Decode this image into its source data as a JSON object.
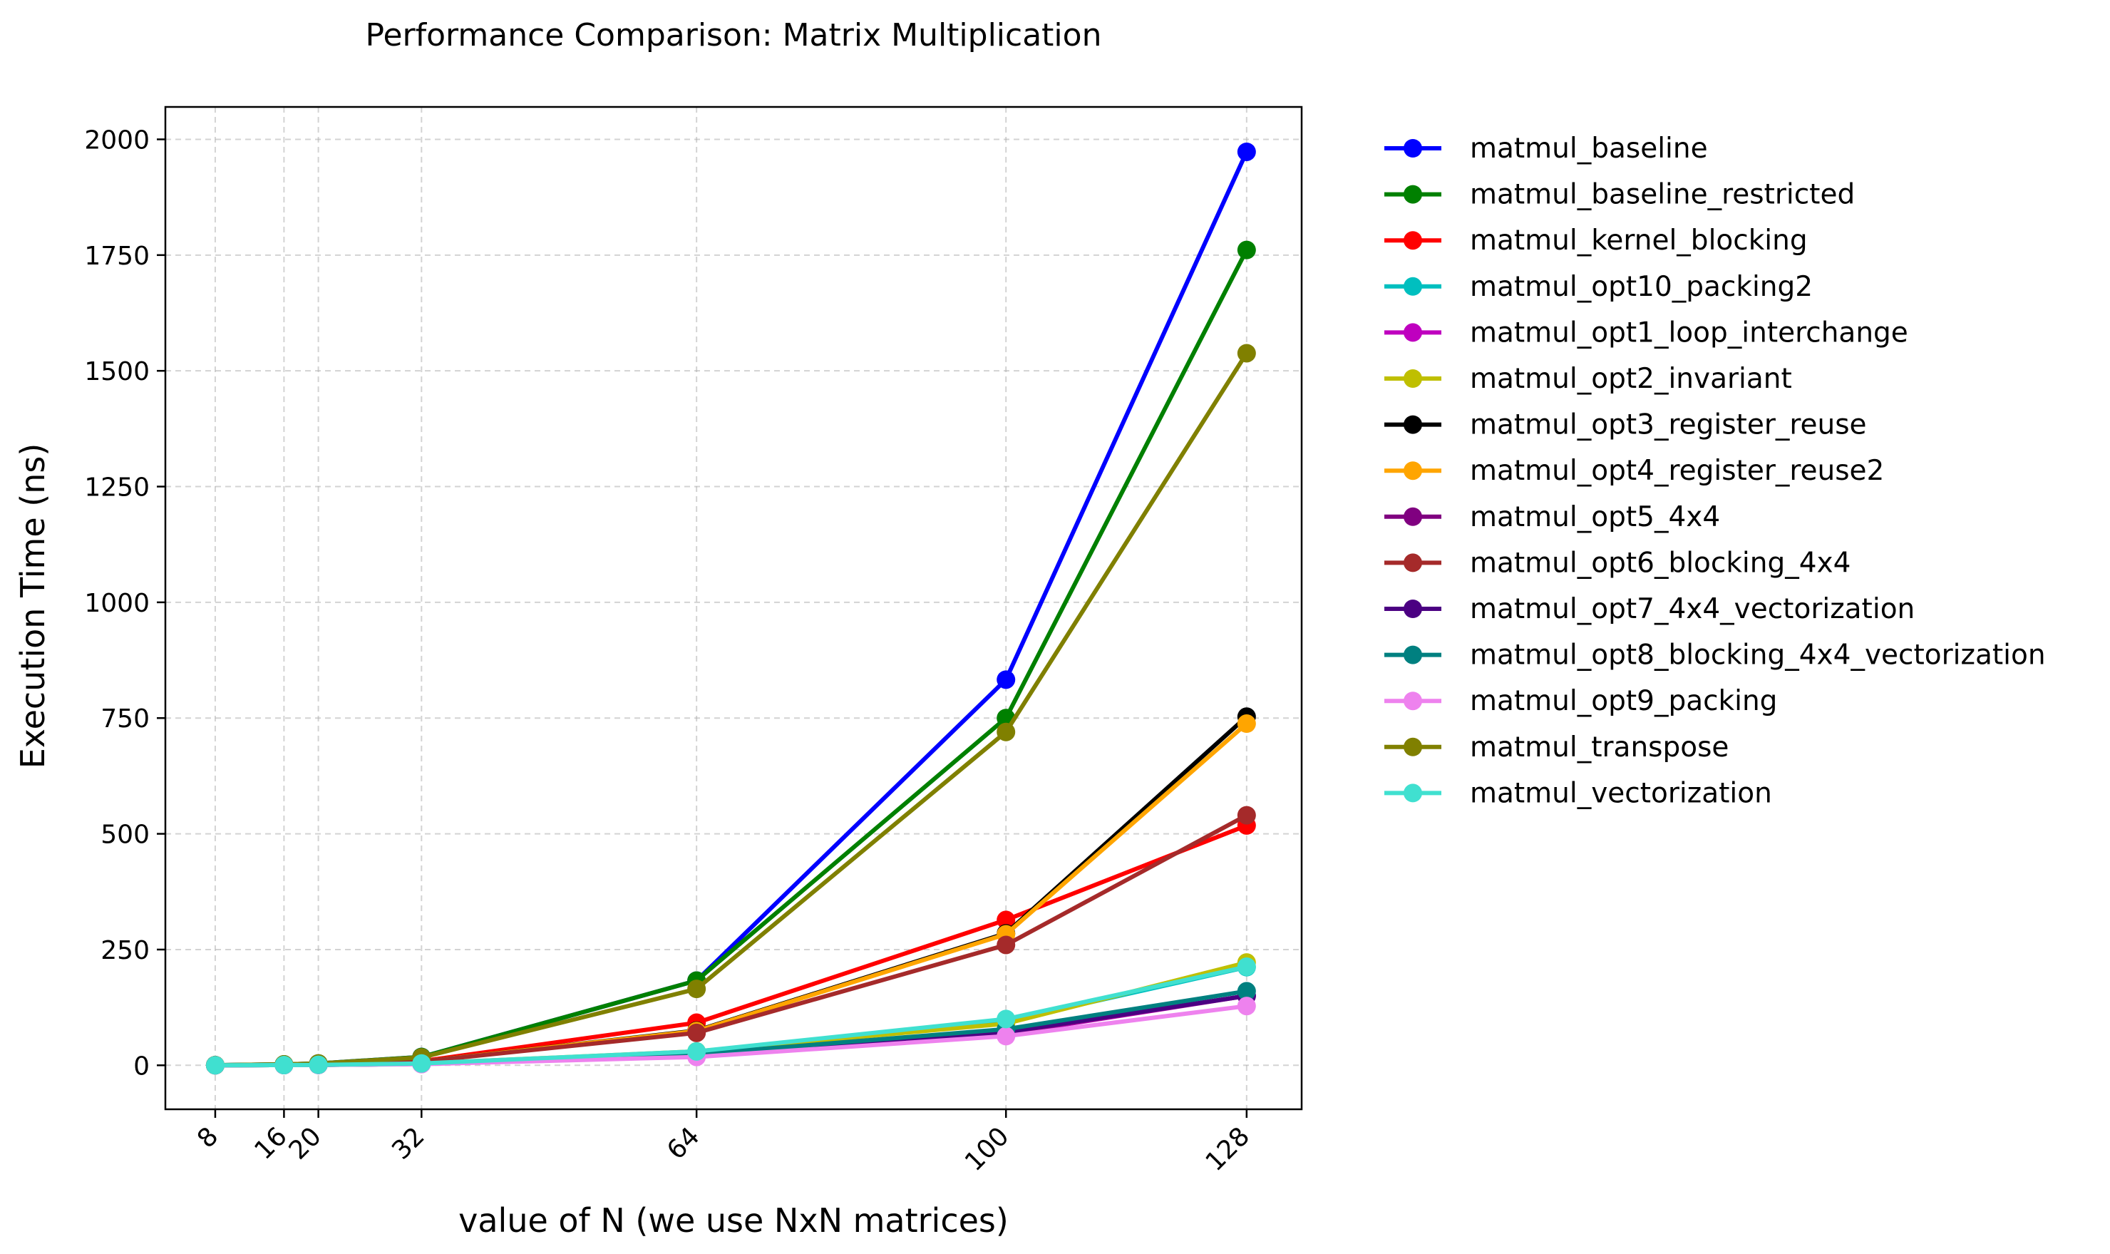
{
  "chart_data": {
    "type": "line",
    "title": "Performance Comparison: Matrix Multiplication",
    "xlabel": "value of N (we use NxN matrices)",
    "ylabel": "Execution Time (ns)",
    "x": [
      8,
      16,
      20,
      32,
      64,
      100,
      128
    ],
    "x_tick_labels": [
      "8",
      "16",
      "20",
      "32",
      "64",
      "100",
      "128"
    ],
    "xlim": [
      2.2,
      134.4
    ],
    "ylim": [
      -95,
      2070
    ],
    "y_ticks": [
      0,
      250,
      500,
      750,
      1000,
      1250,
      1500,
      1750,
      2000
    ],
    "y_tick_labels": [
      "0",
      "250",
      "500",
      "750",
      "1000",
      "1250",
      "1500",
      "1750",
      "2000"
    ],
    "grid": true,
    "legend_position": "outside-right",
    "series": [
      {
        "name": "matmul_baseline",
        "color": "#0000ff",
        "values": [
          0.3,
          2,
          4,
          18,
          183,
          833,
          1973
        ]
      },
      {
        "name": "matmul_baseline_restricted",
        "color": "#008000",
        "values": [
          0.3,
          2,
          4,
          18,
          183,
          750,
          1761
        ]
      },
      {
        "name": "matmul_kernel_blocking",
        "color": "#ff0000",
        "values": [
          0.2,
          1,
          2,
          9,
          92,
          314,
          518
        ]
      },
      {
        "name": "matmul_opt10_packing2",
        "color": "#00bfbf",
        "values": [
          0.1,
          0.5,
          1,
          4,
          28,
          95,
          212
        ]
      },
      {
        "name": "matmul_opt1_loop_interchange",
        "color": "#bf00bf",
        "values": [
          0.1,
          0.4,
          0.8,
          3,
          22,
          68,
          150
        ]
      },
      {
        "name": "matmul_opt2_invariant",
        "color": "#bfbf00",
        "values": [
          0.1,
          0.5,
          1,
          4,
          30,
          90,
          222
        ]
      },
      {
        "name": "matmul_opt3_register_reuse",
        "color": "#000000",
        "values": [
          0.2,
          1,
          2,
          8,
          75,
          285,
          753
        ]
      },
      {
        "name": "matmul_opt4_register_reuse2",
        "color": "#ffa500",
        "values": [
          0.2,
          1,
          2,
          8,
          74,
          283,
          738
        ]
      },
      {
        "name": "matmul_opt5_4x4",
        "color": "#800080",
        "values": [
          0.1,
          0.4,
          0.8,
          3,
          22,
          70,
          150
        ]
      },
      {
        "name": "matmul_opt6_blocking_4x4",
        "color": "#a52a2a",
        "values": [
          0.2,
          1,
          2,
          8,
          70,
          260,
          540
        ]
      },
      {
        "name": "matmul_opt7_4x4_vectorization",
        "color": "#4b0082",
        "values": [
          0.1,
          0.4,
          0.8,
          3,
          22,
          72,
          150
        ]
      },
      {
        "name": "matmul_opt8_blocking_4x4_vectorization",
        "color": "#008080",
        "values": [
          0.1,
          0.5,
          1,
          3,
          24,
          78,
          160
        ]
      },
      {
        "name": "matmul_opt9_packing",
        "color": "#ee82ee",
        "values": [
          0.1,
          0.4,
          0.7,
          2.5,
          18,
          63,
          128
        ]
      },
      {
        "name": "matmul_transpose",
        "color": "#808000",
        "values": [
          0.3,
          2,
          4,
          17,
          165,
          720,
          1538
        ]
      },
      {
        "name": "matmul_vectorization",
        "color": "#40e0d0",
        "values": [
          0.1,
          0.5,
          1,
          4,
          30,
          100,
          213
        ]
      }
    ]
  }
}
